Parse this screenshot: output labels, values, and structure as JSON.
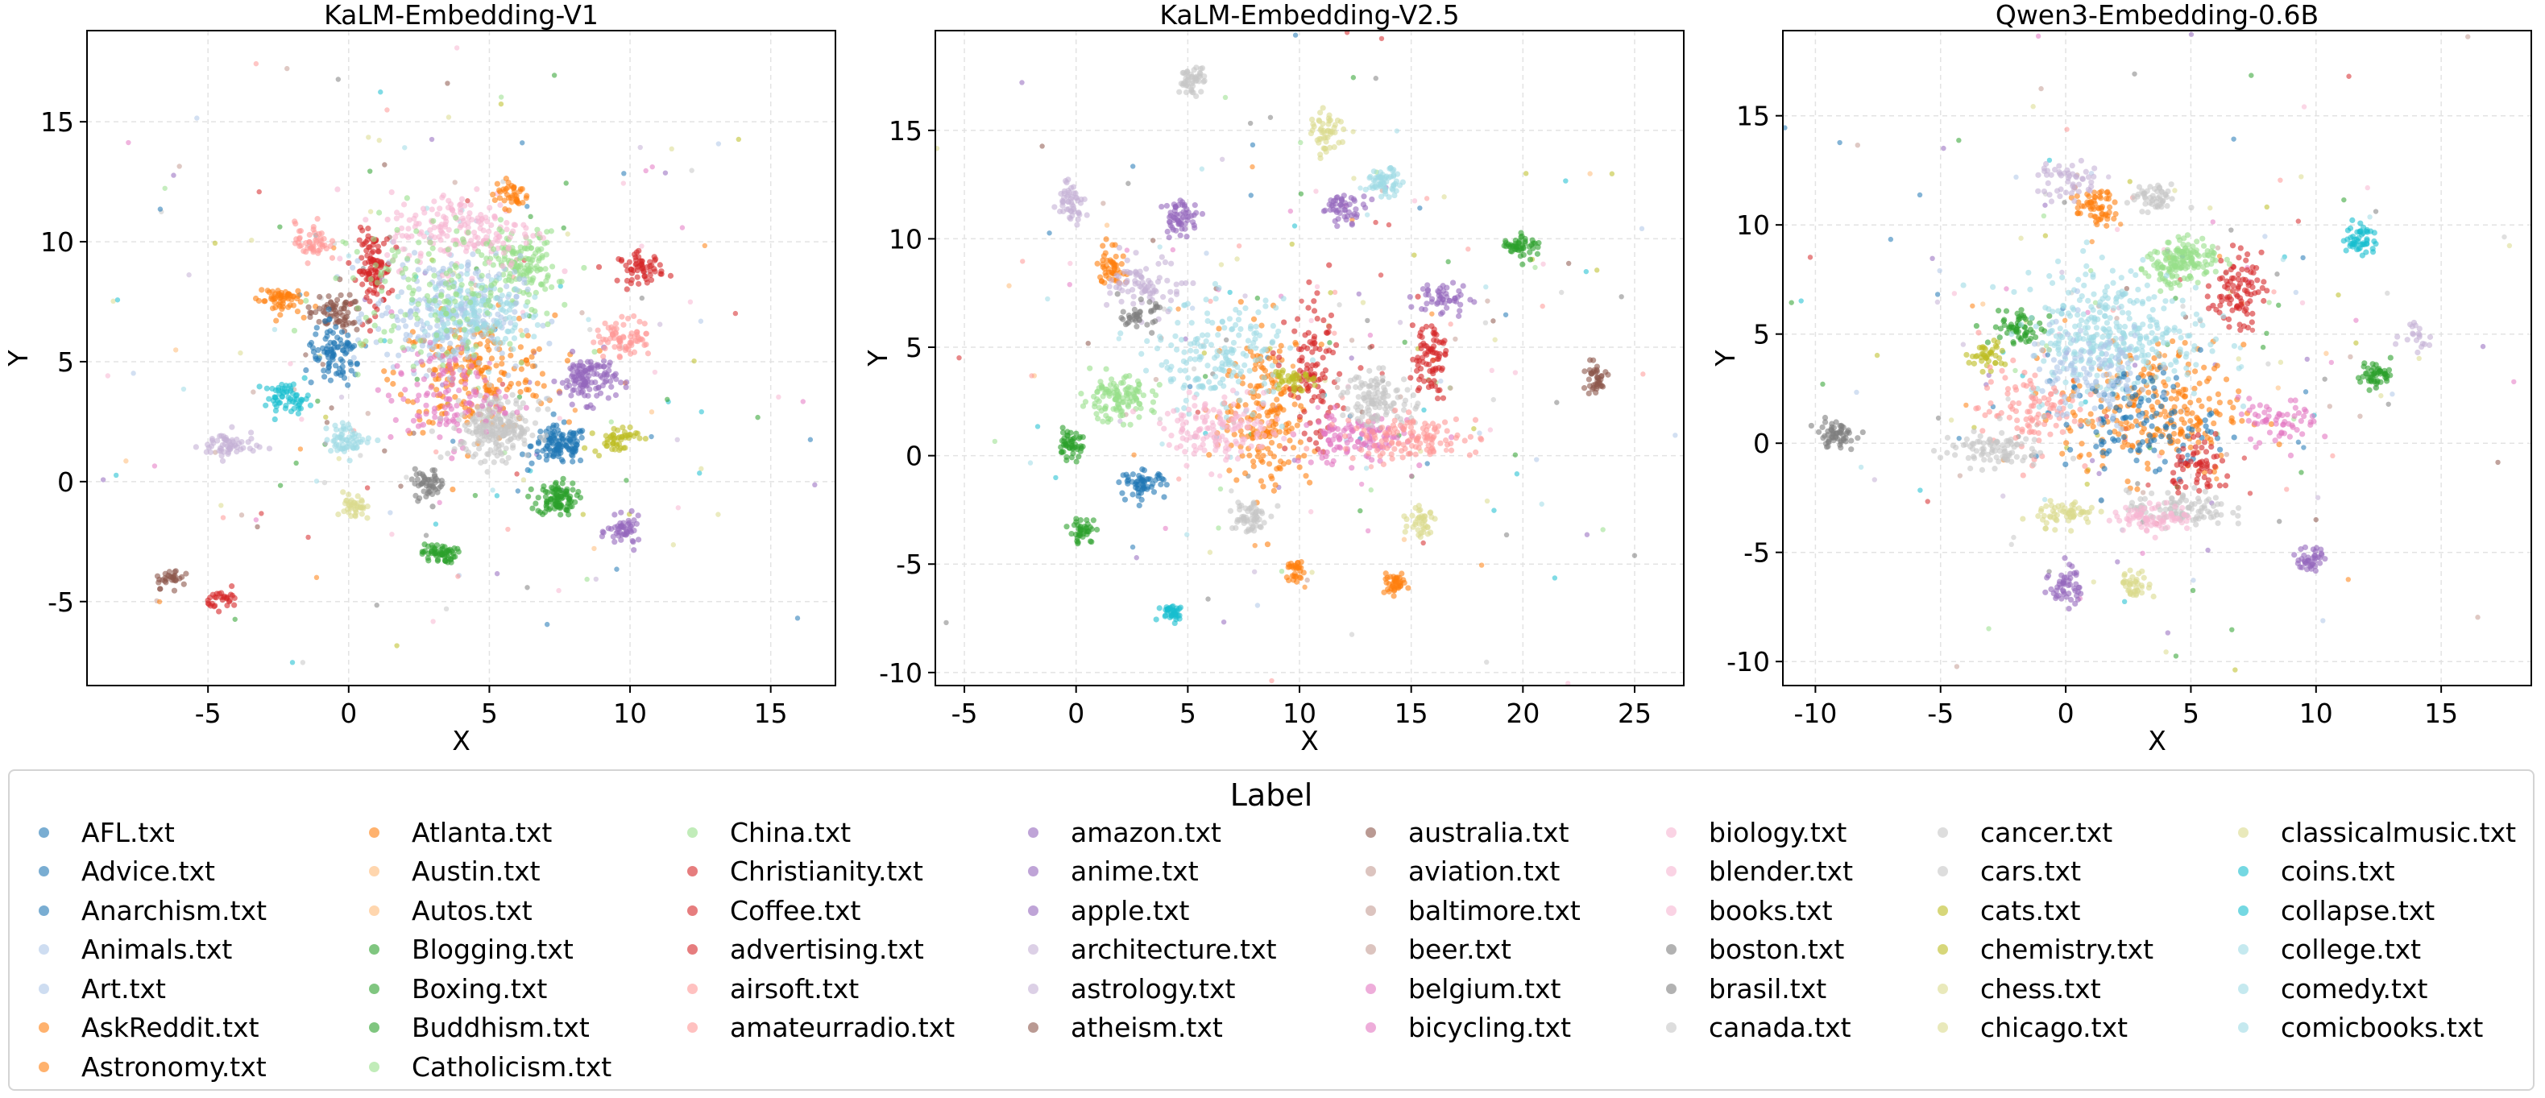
{
  "chart_data": [
    {
      "type": "scatter",
      "title": "KaLM-Embedding-V1",
      "xlabel": "X",
      "ylabel": "Y",
      "xlim": [
        -9.3,
        17.3
      ],
      "ylim": [
        -8.5,
        18.8
      ],
      "xticks": [
        -5,
        0,
        5,
        10,
        15
      ],
      "xtick_labels": [
        "-5",
        "0",
        "5",
        "10",
        "15"
      ],
      "yticks": [
        -5,
        0,
        5,
        10,
        15
      ],
      "ytick_labels": [
        "-5",
        "0",
        "5",
        "10",
        "15"
      ],
      "grid": true,
      "clusters": [
        {
          "label": "Anarchism.txt",
          "x": 7.5,
          "y": 1.5,
          "sx": 0.5,
          "sy": 0.4,
          "n": 120
        },
        {
          "label": "Astronomy.txt",
          "x": 4.5,
          "y": 4.5,
          "sx": 1.4,
          "sy": 1.2,
          "n": 220
        },
        {
          "label": "Boxing.txt",
          "x": 7.4,
          "y": -0.7,
          "sx": 0.35,
          "sy": 0.35,
          "n": 100
        },
        {
          "label": "Blogging.txt",
          "x": 3.2,
          "y": -3.0,
          "sx": 0.3,
          "sy": 0.2,
          "n": 60
        },
        {
          "label": "China.txt",
          "x": 6.2,
          "y": 9.0,
          "sx": 0.6,
          "sy": 0.7,
          "n": 140
        },
        {
          "label": "Christianity.txt",
          "x": 0.9,
          "y": 8.8,
          "sx": 0.3,
          "sy": 0.8,
          "n": 110
        },
        {
          "label": "Coffee.txt",
          "x": 10.4,
          "y": 8.9,
          "sx": 0.4,
          "sy": 0.3,
          "n": 60
        },
        {
          "label": "anime.txt",
          "x": 8.5,
          "y": 4.3,
          "sx": 0.5,
          "sy": 0.5,
          "n": 120
        },
        {
          "label": "apple.txt",
          "x": 9.8,
          "y": -2.1,
          "sx": 0.3,
          "sy": 0.3,
          "n": 50
        },
        {
          "label": "architecture.txt",
          "x": -4.3,
          "y": 1.5,
          "sx": 0.5,
          "sy": 0.3,
          "n": 60
        },
        {
          "label": "Animals.txt",
          "x": 3.5,
          "y": 7.0,
          "sx": 1.3,
          "sy": 1.2,
          "n": 260
        },
        {
          "label": "biology.txt",
          "x": 4.0,
          "y": 10.5,
          "sx": 1.3,
          "sy": 0.8,
          "n": 180
        },
        {
          "label": "cancer.txt",
          "x": 5.3,
          "y": 2.3,
          "sx": 0.6,
          "sy": 0.7,
          "n": 120
        },
        {
          "label": "chemistry.txt",
          "x": 9.5,
          "y": 1.8,
          "sx": 0.4,
          "sy": 0.3,
          "n": 50
        },
        {
          "label": "collapse.txt",
          "x": -2.2,
          "y": 3.5,
          "sx": 0.4,
          "sy": 0.3,
          "n": 60
        },
        {
          "label": "bicycling.txt",
          "x": 3.5,
          "y": 3.5,
          "sx": 1.0,
          "sy": 1.0,
          "n": 120
        },
        {
          "label": "Atlanta.txt",
          "x": -2.5,
          "y": 7.6,
          "sx": 0.4,
          "sy": 0.3,
          "n": 60
        },
        {
          "label": "AskReddit.txt",
          "x": 5.8,
          "y": 12.0,
          "sx": 0.3,
          "sy": 0.3,
          "n": 40
        },
        {
          "label": "australia.txt",
          "x": -0.5,
          "y": 7.0,
          "sx": 0.5,
          "sy": 0.4,
          "n": 70
        },
        {
          "label": "airsoft.txt",
          "x": -1.3,
          "y": 10.0,
          "sx": 0.3,
          "sy": 0.4,
          "n": 50
        },
        {
          "label": "amateurradio.txt",
          "x": 9.8,
          "y": 6.0,
          "sx": 0.5,
          "sy": 0.4,
          "n": 70
        },
        {
          "label": "comedy.txt",
          "x": 0.0,
          "y": 1.8,
          "sx": 0.4,
          "sy": 0.3,
          "n": 60
        },
        {
          "label": "comicbooks.txt",
          "x": 4.4,
          "y": 7.0,
          "sx": 0.9,
          "sy": 0.8,
          "n": 160
        },
        {
          "label": "boston.txt",
          "x": 2.8,
          "y": -0.1,
          "sx": 0.3,
          "sy": 0.3,
          "n": 50
        },
        {
          "label": "classicalmusic.txt",
          "x": 0.2,
          "y": -1.1,
          "sx": 0.2,
          "sy": 0.3,
          "n": 40
        },
        {
          "label": "atheism.txt",
          "x": -6.3,
          "y": -4.0,
          "sx": 0.3,
          "sy": 0.2,
          "n": 30
        },
        {
          "label": "advertising.txt",
          "x": -4.4,
          "y": -4.9,
          "sx": 0.3,
          "sy": 0.2,
          "n": 30
        },
        {
          "label": "Advice.txt",
          "x": -0.5,
          "y": 5.2,
          "sx": 0.5,
          "sy": 0.6,
          "n": 90
        },
        {
          "label": "Catholicism.txt",
          "x": 3.0,
          "y": 8.0,
          "sx": 1.8,
          "sy": 1.5,
          "n": 150
        },
        {
          "label": "canada.txt",
          "x": 5.2,
          "y": 2.2,
          "sx": 0.8,
          "sy": 0.6,
          "n": 100
        }
      ]
    },
    {
      "type": "scatter",
      "title": "KaLM-Embedding-V2.5",
      "xlabel": "X",
      "ylabel": "Y",
      "xlim": [
        -6.3,
        27.2
      ],
      "ylim": [
        -10.6,
        19.6
      ],
      "xticks": [
        -5,
        0,
        5,
        10,
        15,
        20,
        25
      ],
      "xtick_labels": [
        "-5",
        "0",
        "5",
        "10",
        "15",
        "20",
        "25"
      ],
      "yticks": [
        -10,
        -5,
        0,
        5,
        10,
        15
      ],
      "ytick_labels": [
        "-10",
        "-5",
        "0",
        "5",
        "10",
        "15"
      ],
      "grid": true,
      "clusters": [
        {
          "label": "cars.txt",
          "x": 5.2,
          "y": 17.3,
          "sx": 0.3,
          "sy": 0.3,
          "n": 50
        },
        {
          "label": "chess.txt",
          "x": 11.2,
          "y": 14.8,
          "sx": 0.3,
          "sy": 0.5,
          "n": 50
        },
        {
          "label": "college.txt",
          "x": 13.8,
          "y": 12.6,
          "sx": 0.4,
          "sy": 0.3,
          "n": 60
        },
        {
          "label": "architecture.txt",
          "x": -0.2,
          "y": 11.8,
          "sx": 0.3,
          "sy": 0.5,
          "n": 50
        },
        {
          "label": "anime.txt",
          "x": 4.7,
          "y": 11.0,
          "sx": 0.4,
          "sy": 0.4,
          "n": 60
        },
        {
          "label": "apple.txt",
          "x": 12.0,
          "y": 11.4,
          "sx": 0.5,
          "sy": 0.3,
          "n": 50
        },
        {
          "label": "Atlanta.txt",
          "x": 1.6,
          "y": 8.8,
          "sx": 0.3,
          "sy": 0.5,
          "n": 50
        },
        {
          "label": "Boxing.txt",
          "x": 19.9,
          "y": 9.7,
          "sx": 0.4,
          "sy": 0.3,
          "n": 50
        },
        {
          "label": "amazon.txt",
          "x": 16.4,
          "y": 7.2,
          "sx": 0.6,
          "sy": 0.4,
          "n": 50
        },
        {
          "label": "Christianity.txt",
          "x": 15.8,
          "y": 4.6,
          "sx": 0.4,
          "sy": 0.9,
          "n": 80
        },
        {
          "label": "China.txt",
          "x": 1.8,
          "y": 2.6,
          "sx": 0.8,
          "sy": 0.5,
          "n": 120
        },
        {
          "label": "Blogging.txt",
          "x": -0.3,
          "y": 0.5,
          "sx": 0.3,
          "sy": 0.3,
          "n": 50
        },
        {
          "label": "Anarchism.txt",
          "x": 3.0,
          "y": -1.3,
          "sx": 0.5,
          "sy": 0.3,
          "n": 60
        },
        {
          "label": "Boxing.txt",
          "x": 0.3,
          "y": -3.5,
          "sx": 0.3,
          "sy": 0.3,
          "n": 40
        },
        {
          "label": "collapse.txt",
          "x": 4.3,
          "y": -7.2,
          "sx": 0.3,
          "sy": 0.2,
          "n": 40
        },
        {
          "label": "Astronomy.txt",
          "x": 8.5,
          "y": 2.0,
          "sx": 1.0,
          "sy": 1.8,
          "n": 200
        },
        {
          "label": "comicbooks.txt",
          "x": 6.5,
          "y": 4.5,
          "sx": 1.5,
          "sy": 1.3,
          "n": 180
        },
        {
          "label": "Coffee.txt",
          "x": 10.6,
          "y": 3.5,
          "sx": 0.6,
          "sy": 1.6,
          "n": 110
        },
        {
          "label": "bicycling.txt",
          "x": 12.5,
          "y": 0.8,
          "sx": 1.2,
          "sy": 0.6,
          "n": 120
        },
        {
          "label": "canada.txt",
          "x": 13.5,
          "y": 2.6,
          "sx": 0.8,
          "sy": 0.6,
          "n": 120
        },
        {
          "label": "books.txt",
          "x": 6.5,
          "y": 1.2,
          "sx": 1.3,
          "sy": 0.7,
          "n": 140
        },
        {
          "label": "amateurradio.txt",
          "x": 15.0,
          "y": 0.8,
          "sx": 1.5,
          "sy": 0.5,
          "n": 120
        },
        {
          "label": "Astronomy.txt",
          "x": 14.2,
          "y": -5.9,
          "sx": 0.3,
          "sy": 0.2,
          "n": 40
        },
        {
          "label": "chicago.txt",
          "x": 15.5,
          "y": -3.0,
          "sx": 0.3,
          "sy": 0.4,
          "n": 40
        },
        {
          "label": "chemistry.txt",
          "x": 9.6,
          "y": 3.6,
          "sx": 0.4,
          "sy": 0.3,
          "n": 40
        },
        {
          "label": "cancer.txt",
          "x": 7.7,
          "y": -2.8,
          "sx": 0.4,
          "sy": 0.4,
          "n": 60
        },
        {
          "label": "australia.txt",
          "x": 23.2,
          "y": 3.5,
          "sx": 0.3,
          "sy": 0.4,
          "n": 40
        },
        {
          "label": "AskReddit.txt",
          "x": 9.8,
          "y": -5.3,
          "sx": 0.2,
          "sy": 0.3,
          "n": 30
        },
        {
          "label": "astrology.txt",
          "x": 3.2,
          "y": 7.8,
          "sx": 0.8,
          "sy": 0.6,
          "n": 80
        },
        {
          "label": "boston.txt",
          "x": 2.8,
          "y": 6.5,
          "sx": 0.4,
          "sy": 0.3,
          "n": 40
        }
      ]
    },
    {
      "type": "scatter",
      "title": "Qwen3-Embedding-0.6B",
      "xlabel": "X",
      "ylabel": "Y",
      "xlim": [
        -11.3,
        18.6
      ],
      "ylim": [
        -11.1,
        18.9
      ],
      "xticks": [
        -10,
        -5,
        0,
        5,
        10,
        15
      ],
      "xtick_labels": [
        "-10",
        "-5",
        "0",
        "5",
        "10",
        "15"
      ],
      "yticks": [
        -10,
        -5,
        0,
        5,
        10,
        15
      ],
      "ytick_labels": [
        "-10",
        "-5",
        "0",
        "5",
        "10",
        "15"
      ],
      "grid": true,
      "clusters": [
        {
          "label": "boston.txt",
          "x": -9.2,
          "y": 0.4,
          "sx": 0.4,
          "sy": 0.3,
          "n": 60
        },
        {
          "label": "Atlanta.txt",
          "x": 1.2,
          "y": 10.8,
          "sx": 0.4,
          "sy": 0.4,
          "n": 60
        },
        {
          "label": "Christianity.txt",
          "x": 6.8,
          "y": 7.0,
          "sx": 0.5,
          "sy": 0.8,
          "n": 90
        },
        {
          "label": "collapse.txt",
          "x": 11.8,
          "y": 9.3,
          "sx": 0.3,
          "sy": 0.4,
          "n": 50
        },
        {
          "label": "Blogging.txt",
          "x": 12.4,
          "y": 3.2,
          "sx": 0.3,
          "sy": 0.3,
          "n": 50
        },
        {
          "label": "apple.txt",
          "x": 9.8,
          "y": -5.3,
          "sx": 0.3,
          "sy": 0.3,
          "n": 40
        },
        {
          "label": "anime.txt",
          "x": 0.0,
          "y": -6.5,
          "sx": 0.3,
          "sy": 0.5,
          "n": 50
        },
        {
          "label": "chicago.txt",
          "x": 2.8,
          "y": -6.5,
          "sx": 0.3,
          "sy": 0.3,
          "n": 40
        },
        {
          "label": "Boxing.txt",
          "x": -1.8,
          "y": 5.3,
          "sx": 0.6,
          "sy": 0.4,
          "n": 60
        },
        {
          "label": "chemistry.txt",
          "x": -3.2,
          "y": 4.0,
          "sx": 0.4,
          "sy": 0.3,
          "n": 40
        },
        {
          "label": "architecture.txt",
          "x": 0.2,
          "y": 12.0,
          "sx": 0.6,
          "sy": 0.5,
          "n": 50
        },
        {
          "label": "cancer.txt",
          "x": 3.5,
          "y": 11.2,
          "sx": 0.5,
          "sy": 0.3,
          "n": 50
        },
        {
          "label": "China.txt",
          "x": 4.2,
          "y": 8.0,
          "sx": 0.5,
          "sy": 0.6,
          "n": 80
        },
        {
          "label": "Astronomy.txt",
          "x": 3.5,
          "y": 1.5,
          "sx": 1.8,
          "sy": 1.5,
          "n": 240
        },
        {
          "label": "comicbooks.txt",
          "x": 2.0,
          "y": 4.5,
          "sx": 1.8,
          "sy": 1.3,
          "n": 220
        },
        {
          "label": "Anarchism.txt",
          "x": 3.0,
          "y": 1.0,
          "sx": 1.5,
          "sy": 1.2,
          "n": 120
        },
        {
          "label": "amateurradio.txt",
          "x": -1.5,
          "y": 1.5,
          "sx": 1.0,
          "sy": 1.0,
          "n": 100
        },
        {
          "label": "canada.txt",
          "x": -3.0,
          "y": -0.3,
          "sx": 1.0,
          "sy": 0.4,
          "n": 90
        },
        {
          "label": "cars.txt",
          "x": 4.5,
          "y": -3.0,
          "sx": 1.0,
          "sy": 0.4,
          "n": 100
        },
        {
          "label": "books.txt",
          "x": 3.5,
          "y": -3.4,
          "sx": 0.8,
          "sy": 0.3,
          "n": 80
        },
        {
          "label": "comedy.txt",
          "x": 1.5,
          "y": 6.0,
          "sx": 1.5,
          "sy": 1.3,
          "n": 130
        },
        {
          "label": "Catholicism.txt",
          "x": 5.0,
          "y": 8.5,
          "sx": 0.6,
          "sy": 0.5,
          "n": 80
        },
        {
          "label": "bicycling.txt",
          "x": 8.5,
          "y": 1.0,
          "sx": 0.8,
          "sy": 0.5,
          "n": 60
        },
        {
          "label": "classicalmusic.txt",
          "x": 0.0,
          "y": -3.2,
          "sx": 0.6,
          "sy": 0.3,
          "n": 60
        },
        {
          "label": "Coffee.txt",
          "x": 5.5,
          "y": -1.2,
          "sx": 0.6,
          "sy": 0.6,
          "n": 60
        },
        {
          "label": "Animals.txt",
          "x": 1.0,
          "y": 3.0,
          "sx": 1.3,
          "sy": 1.2,
          "n": 120
        },
        {
          "label": "architecture.txt",
          "x": 14.0,
          "y": 5.0,
          "sx": 0.3,
          "sy": 0.4,
          "n": 20
        }
      ]
    }
  ],
  "legend": {
    "title": "Label",
    "columns": [
      [
        [
          "AFL.txt",
          "#1f77b4"
        ],
        [
          "Advice.txt",
          "#1f77b4"
        ],
        [
          "Anarchism.txt",
          "#1f77b4"
        ],
        [
          "Animals.txt",
          "#aec7e8"
        ],
        [
          "Art.txt",
          "#aec7e8"
        ],
        [
          "AskReddit.txt",
          "#ff7f0e"
        ],
        [
          "Astronomy.txt",
          "#ff7f0e"
        ]
      ],
      [
        [
          "Atlanta.txt",
          "#ff7f0e"
        ],
        [
          "Austin.txt",
          "#ffbb78"
        ],
        [
          "Autos.txt",
          "#ffbb78"
        ],
        [
          "Blogging.txt",
          "#2ca02c"
        ],
        [
          "Boxing.txt",
          "#2ca02c"
        ],
        [
          "Buddhism.txt",
          "#2ca02c"
        ],
        [
          "Catholicism.txt",
          "#98df8a"
        ]
      ],
      [
        [
          "China.txt",
          "#98df8a"
        ],
        [
          "Christianity.txt",
          "#d62728"
        ],
        [
          "Coffee.txt",
          "#d62728"
        ],
        [
          "advertising.txt",
          "#d62728"
        ],
        [
          "airsoft.txt",
          "#ff9896"
        ],
        [
          "amateurradio.txt",
          "#ff9896"
        ]
      ],
      [
        [
          "amazon.txt",
          "#9467bd"
        ],
        [
          "anime.txt",
          "#9467bd"
        ],
        [
          "apple.txt",
          "#9467bd"
        ],
        [
          "architecture.txt",
          "#c5b0d5"
        ],
        [
          "astrology.txt",
          "#c5b0d5"
        ],
        [
          "atheism.txt",
          "#8c564b"
        ]
      ],
      [
        [
          "australia.txt",
          "#8c564b"
        ],
        [
          "aviation.txt",
          "#c49c94"
        ],
        [
          "baltimore.txt",
          "#c49c94"
        ],
        [
          "beer.txt",
          "#c49c94"
        ],
        [
          "belgium.txt",
          "#e377c2"
        ],
        [
          "bicycling.txt",
          "#e377c2"
        ]
      ],
      [
        [
          "biology.txt",
          "#f7b6d2"
        ],
        [
          "blender.txt",
          "#f7b6d2"
        ],
        [
          "books.txt",
          "#f7b6d2"
        ],
        [
          "boston.txt",
          "#7f7f7f"
        ],
        [
          "brasil.txt",
          "#7f7f7f"
        ],
        [
          "canada.txt",
          "#c7c7c7"
        ]
      ],
      [
        [
          "cancer.txt",
          "#c7c7c7"
        ],
        [
          "cars.txt",
          "#c7c7c7"
        ],
        [
          "cats.txt",
          "#bcbd22"
        ],
        [
          "chemistry.txt",
          "#bcbd22"
        ],
        [
          "chess.txt",
          "#dbdb8d"
        ],
        [
          "chicago.txt",
          "#dbdb8d"
        ]
      ],
      [
        [
          "classicalmusic.txt",
          "#dbdb8d"
        ],
        [
          "coins.txt",
          "#17becf"
        ],
        [
          "collapse.txt",
          "#17becf"
        ],
        [
          "college.txt",
          "#9edae5"
        ],
        [
          "comedy.txt",
          "#9edae5"
        ],
        [
          "comicbooks.txt",
          "#9edae5"
        ]
      ]
    ]
  }
}
